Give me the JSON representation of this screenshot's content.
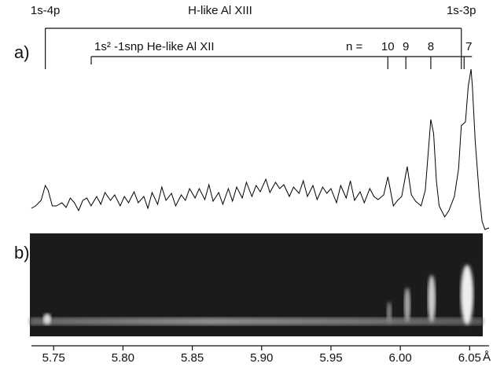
{
  "chart_data": {
    "type": "line",
    "color": "#000000",
    "panel_labels": [
      "a)",
      "b)"
    ],
    "x_unit": "Å",
    "xlim": [
      5.734,
      6.064
    ],
    "xticks": [
      {
        "value": 5.75,
        "label": "5.75"
      },
      {
        "value": 5.8,
        "label": "5.80"
      },
      5.85,
      {
        "value": 5.9,
        "label": "5.90"
      },
      5.95,
      {
        "value": 6.0,
        "label": "6.00"
      },
      6.05
    ],
    "ylim": [
      0,
      220
    ],
    "h_like": {
      "label": "H-like Al XIII",
      "lines": [
        {
          "label": "1s-4p",
          "x": 5.744
        },
        {
          "label": "1s-3p",
          "x": 6.044
        }
      ]
    },
    "he_like": {
      "label": "1s² -1snp  He-like Al XII",
      "n_label": "n =",
      "lines": [
        {
          "label": "10",
          "x": 5.991
        },
        {
          "label": "9",
          "x": 6.004
        },
        {
          "label": "8",
          "x": 6.022
        },
        {
          "label": "7",
          "x": 6.046
        }
      ]
    },
    "x": [
      5.734,
      5.737,
      5.741,
      5.744,
      5.746,
      5.749,
      5.752,
      5.756,
      5.759,
      5.762,
      5.765,
      5.768,
      5.771,
      5.774,
      5.777,
      5.781,
      5.784,
      5.787,
      5.791,
      5.794,
      5.798,
      5.801,
      5.804,
      5.808,
      5.811,
      5.815,
      5.818,
      5.821,
      5.825,
      5.828,
      5.831,
      5.835,
      5.838,
      5.842,
      5.845,
      5.848,
      5.852,
      5.855,
      5.859,
      5.862,
      5.865,
      5.869,
      5.872,
      5.876,
      5.879,
      5.882,
      5.886,
      5.889,
      5.893,
      5.896,
      5.899,
      5.903,
      5.906,
      5.91,
      5.913,
      5.916,
      5.92,
      5.923,
      5.927,
      5.93,
      5.933,
      5.937,
      5.94,
      5.944,
      5.947,
      5.95,
      5.954,
      5.957,
      5.961,
      5.964,
      5.967,
      5.971,
      5.974,
      5.978,
      5.981,
      5.984,
      5.988,
      5.991,
      5.995,
      5.998,
      6.001,
      6.005,
      6.008,
      6.011,
      6.015,
      6.018,
      6.022,
      6.024,
      6.026,
      6.028,
      6.032,
      6.035,
      6.039,
      6.042,
      6.044,
      6.047,
      6.049,
      6.051,
      6.052,
      6.054,
      6.057,
      6.059,
      6.061,
      6.064
    ],
    "values": [
      35,
      38,
      45,
      64,
      58,
      38,
      38,
      42,
      36,
      48,
      42,
      32,
      45,
      48,
      38,
      50,
      40,
      55,
      45,
      52,
      38,
      50,
      42,
      56,
      42,
      50,
      35,
      55,
      40,
      62,
      45,
      54,
      38,
      52,
      45,
      60,
      48,
      60,
      46,
      65,
      44,
      55,
      40,
      60,
      44,
      62,
      48,
      68,
      50,
      64,
      56,
      72,
      55,
      68,
      60,
      65,
      50,
      62,
      54,
      70,
      50,
      64,
      46,
      62,
      54,
      60,
      42,
      64,
      48,
      70,
      45,
      56,
      42,
      60,
      50,
      46,
      52,
      75,
      38,
      45,
      50,
      88,
      52,
      44,
      38,
      58,
      148,
      130,
      70,
      38,
      24,
      32,
      50,
      85,
      140,
      145,
      190,
      212,
      190,
      120,
      50,
      18,
      8,
      10
    ]
  }
}
